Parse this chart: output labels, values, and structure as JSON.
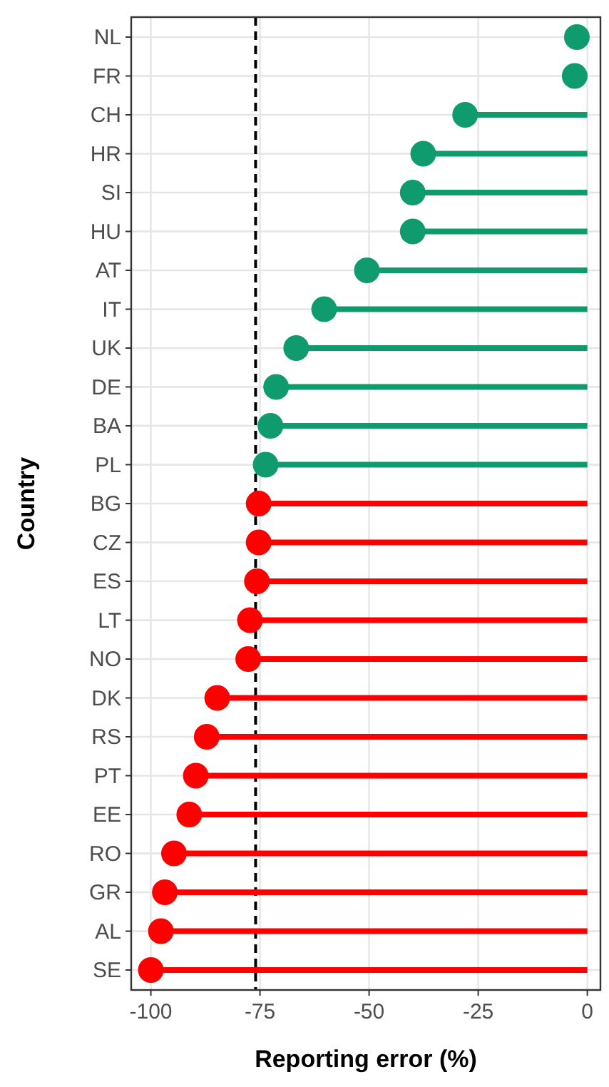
{
  "chart_data": {
    "type": "lollipop",
    "orientation": "horizontal",
    "xlabel": "Reporting error (%)",
    "ylabel": "Country",
    "categories": [
      "NL",
      "FR",
      "CH",
      "HR",
      "SI",
      "HU",
      "AT",
      "IT",
      "UK",
      "DE",
      "BA",
      "PL",
      "BG",
      "CZ",
      "ES",
      "LT",
      "NO",
      "DK",
      "RS",
      "PT",
      "EE",
      "RO",
      "GR",
      "AL",
      "SE"
    ],
    "values": [
      -2.4,
      -2.9,
      -28,
      -37.6,
      -40,
      -40,
      -50.5,
      -60.3,
      -66.7,
      -71.3,
      -72.6,
      -73.7,
      -75.3,
      -75.3,
      -75.7,
      -77.3,
      -77.7,
      -84.8,
      -87.2,
      -89.7,
      -91.2,
      -94.7,
      -96.8,
      -97.7,
      -100
    ],
    "colors": [
      "#0f9b6e",
      "#0f9b6e",
      "#0f9b6e",
      "#0f9b6e",
      "#0f9b6e",
      "#0f9b6e",
      "#0f9b6e",
      "#0f9b6e",
      "#0f9b6e",
      "#0f9b6e",
      "#0f9b6e",
      "#0f9b6e",
      "#ff0000",
      "#ff0000",
      "#ff0000",
      "#ff0000",
      "#ff0000",
      "#ff0000",
      "#ff0000",
      "#ff0000",
      "#ff0000",
      "#ff0000",
      "#ff0000",
      "#ff0000",
      "#ff0000"
    ],
    "xlim": [
      -104.5,
      3
    ],
    "xticks": [
      -100,
      -75,
      -50,
      -25,
      0
    ],
    "grid": true,
    "marker": "circle",
    "ref_lines": [
      {
        "axis": "x",
        "value": -76,
        "color": "#000000",
        "line_style": "dashed"
      }
    ]
  }
}
